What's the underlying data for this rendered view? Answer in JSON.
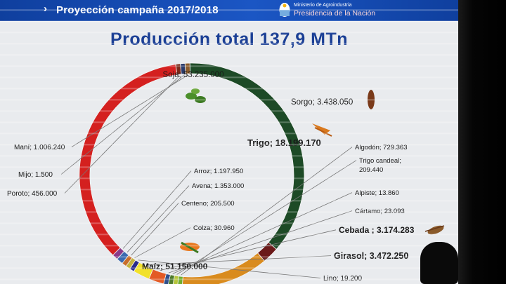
{
  "header": {
    "chevron": "›",
    "title": "Proyección campaña 2017/2018",
    "ministry": "Ministerio de Agroindustria",
    "presidency": "Presidencia de la Nación",
    "bar_color": "#1b56c4"
  },
  "page_title": "Producción total 137,9 MTn",
  "chart_data": {
    "type": "pie",
    "style": "donut",
    "title": "Producción total 137,9 MTn",
    "unit": "toneladas",
    "categories": [
      "Soja",
      "Sorgo",
      "Trigo",
      "Algodón",
      "Trigo candeal",
      "Alpiste",
      "Cártamo",
      "Cebada",
      "Girasol",
      "Lino",
      "Colza",
      "Centeno",
      "Avena",
      "Arroz",
      "Maíz",
      "Poroto",
      "Mijo",
      "Maní"
    ],
    "values": [
      53235000,
      3438050,
      18199170,
      729363,
      209440,
      13860,
      23093,
      3174283,
      3472250,
      19200,
      30960,
      205500,
      1353000,
      1197950,
      51150000,
      456000,
      1500,
      1006240
    ],
    "labels": [
      "Soja; 53.235.000",
      "Sorgo; 3.438.050",
      "Trigo; 18.199.170",
      "Algodón; 729.363",
      "Trigo candeal; 209.440",
      "Alpiste; 13.860",
      "Cártamo; 23.093",
      "Cebada ; 3.174.283",
      "Girasol; 3.472.250",
      "Lino; 19.200",
      "Colza; 30.960",
      "Centeno; 205.500",
      "Avena; 1.353.000",
      "Arroz; 1.197.950",
      "Maíz; 51.150.000",
      "Poroto; 456.000",
      "Mijo; 1.500",
      "Maní; 1.006.240"
    ],
    "colors": [
      "#1d4a26",
      "#6b1a1a",
      "#d98b1e",
      "#6fae2c",
      "#b5c53a",
      "#4d7a2a",
      "#2e4f8a",
      "#e35a24",
      "#f2e12a",
      "#2a2a8a",
      "#c6b33f",
      "#c86d2a",
      "#3b6ab0",
      "#8a3a8a",
      "#d4201f",
      "#7a2a1a",
      "#2a3a6a",
      "#8a5a2a"
    ]
  }
}
